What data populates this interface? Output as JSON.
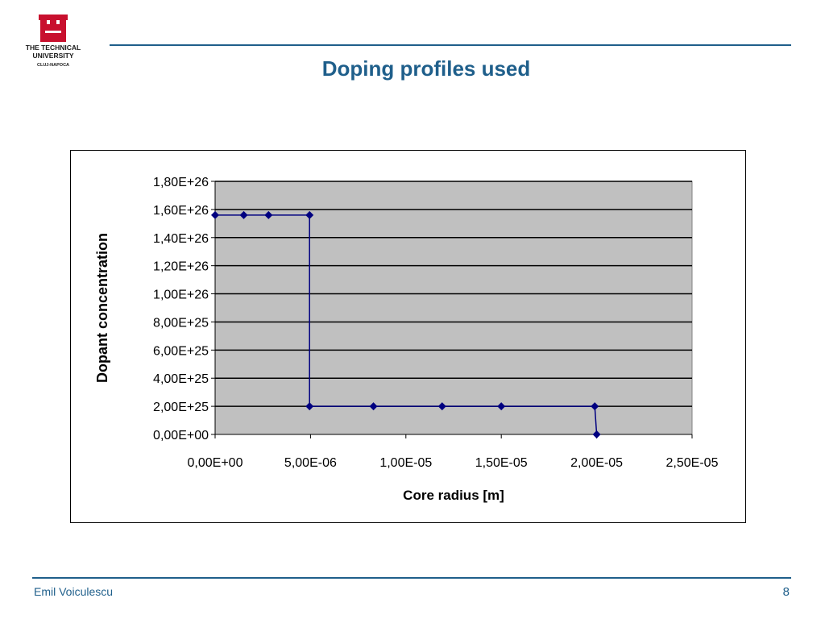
{
  "logo": {
    "line1": "THE TECHNICAL",
    "line2": "UNIVERSITY",
    "line3": "CLUJ-NAPOCA",
    "color": "#c8102e"
  },
  "slide": {
    "title": "Doping profiles used",
    "author": "Emil Voiculescu",
    "page_number": "8",
    "accent_color": "#1f5f8b"
  },
  "chart_data": {
    "type": "line",
    "title": "",
    "xlabel": "Core radius [m]",
    "ylabel": "Dopant concentration",
    "xlim": [
      0,
      2.5e-05
    ],
    "ylim": [
      0,
      1.8e+26
    ],
    "x_ticks": [
      0,
      5e-06,
      1e-05,
      1.5e-05,
      2e-05,
      2.5e-05
    ],
    "x_tick_labels": [
      "0,00E+00",
      "5,00E-06",
      "1,00E-05",
      "1,50E-05",
      "2,00E-05",
      "2,50E-05"
    ],
    "y_ticks": [
      0,
      2e+25,
      4e+25,
      6e+25,
      8e+25,
      1e+26,
      1.2e+26,
      1.4e+26,
      1.6e+26,
      1.8e+26
    ],
    "y_tick_labels": [
      "0,00E+00",
      "2,00E+25",
      "4,00E+25",
      "6,00E+25",
      "8,00E+25",
      "1,00E+26",
      "1,20E+26",
      "1,40E+26",
      "1,60E+26",
      "1,80E+26"
    ],
    "grid": "horizontal",
    "plot_background": "#c0c0c0",
    "series": [
      {
        "color": "#000080",
        "marker": "diamond",
        "points": [
          {
            "x": 0,
            "y": 1.56e+26
          },
          {
            "x": 1.5e-06,
            "y": 1.56e+26
          },
          {
            "x": 2.8e-06,
            "y": 1.56e+26
          },
          {
            "x": 4.95e-06,
            "y": 1.56e+26
          },
          {
            "x": 4.95e-06,
            "y": 2e+25
          },
          {
            "x": 8.3e-06,
            "y": 2e+25
          },
          {
            "x": 1.19e-05,
            "y": 2e+25
          },
          {
            "x": 1.5e-05,
            "y": 2e+25
          },
          {
            "x": 1.99e-05,
            "y": 2e+25
          },
          {
            "x": 2e-05,
            "y": 0
          }
        ]
      }
    ]
  }
}
